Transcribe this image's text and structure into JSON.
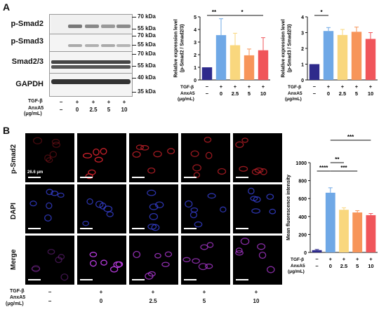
{
  "panels": {
    "a": "A",
    "b": "B"
  },
  "blot": {
    "rows": [
      {
        "label": "p-Smad2",
        "kda": [
          "70 kDa",
          "55 kDa"
        ]
      },
      {
        "label": "p-Smad3",
        "kda": [
          "70 kDa",
          "55 kDa"
        ]
      },
      {
        "label": "Smad2/3",
        "kda": [
          "70 kDa",
          "55 kDa"
        ]
      },
      {
        "label": "GAPDH",
        "kda": [
          "40 kDa",
          "35 kDa"
        ]
      }
    ]
  },
  "conditions": {
    "tgf_label": "TGF-β",
    "anxa5_label": "AnxA5",
    "unit_label": "(μg/mL)",
    "tgf": [
      "−",
      "+",
      "+",
      "+",
      "+"
    ],
    "dose": [
      "−",
      "0",
      "2.5",
      "5",
      "10"
    ],
    "dose_b": [
      "−",
      "0",
      "2.5",
      "5",
      "10"
    ]
  },
  "colors": [
    "#2e2a8c",
    "#6fa8e6",
    "#f9d77e",
    "#f7955a",
    "#f0555a"
  ],
  "chart_data": [
    {
      "type": "bar",
      "categories": [
        "−",
        "0",
        "2.5",
        "5",
        "10"
      ],
      "values": [
        1.0,
        3.55,
        2.75,
        1.95,
        2.35
      ],
      "errors": [
        0,
        1.3,
        0.95,
        0.5,
        1.0
      ],
      "ylabel": "Relative expression level\n(p-Smad2 / Smad2/3)",
      "ylim": [
        0,
        5
      ],
      "yticks": [
        "0",
        "1",
        "2",
        "3",
        "4",
        "5"
      ],
      "annotations": [
        "**",
        "*"
      ]
    },
    {
      "type": "bar",
      "categories": [
        "−",
        "0",
        "2.5",
        "5",
        "10"
      ],
      "values": [
        1.0,
        3.1,
        2.85,
        3.05,
        2.6
      ],
      "errors": [
        0,
        0.22,
        0.35,
        0.3,
        0.4
      ],
      "ylabel": "Relative expression level\n(p-Smad3 / Smad2/3)",
      "ylim": [
        0,
        4
      ],
      "yticks": [
        "0",
        "1",
        "2",
        "3",
        "4"
      ],
      "annotations": [
        "*"
      ]
    },
    {
      "type": "bar",
      "categories": [
        "−",
        "0",
        "2.5",
        "5",
        "10"
      ],
      "values": [
        25,
        665,
        475,
        445,
        415
      ],
      "errors": [
        8,
        55,
        22,
        20,
        18
      ],
      "ylabel": "Mean fluorescence intensity",
      "ylim": [
        0,
        1000
      ],
      "yticks": [
        "0",
        "200",
        "400",
        "600",
        "800",
        "1000"
      ],
      "annotations": [
        "****",
        "**",
        "***",
        "***"
      ]
    }
  ],
  "micro": {
    "rows": [
      "p-Smad2",
      "DAPI",
      "Merge"
    ],
    "scale_label": "26.6 μm"
  }
}
